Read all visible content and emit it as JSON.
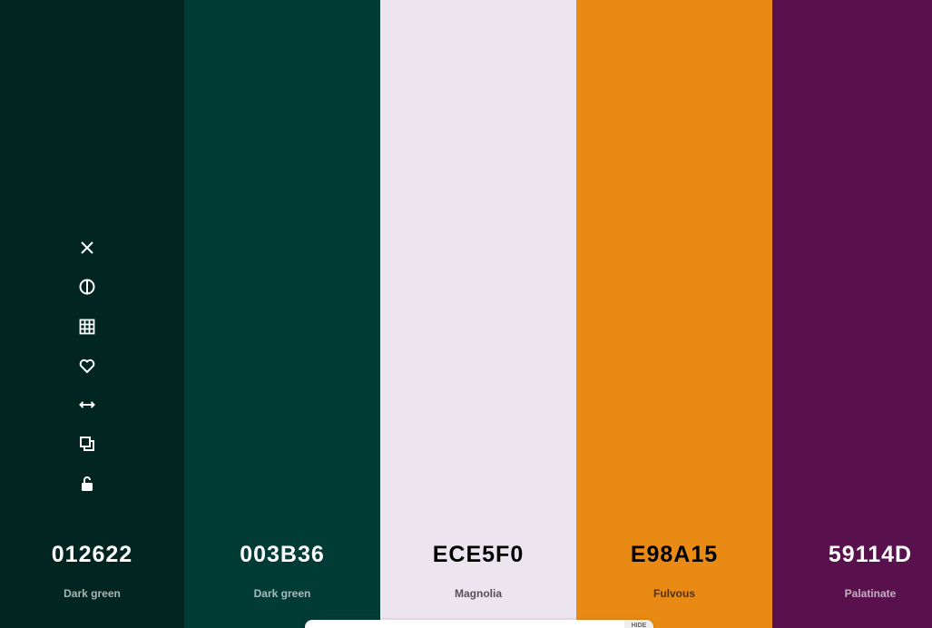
{
  "palette": [
    {
      "hex": "012622",
      "name": "Dark green",
      "color": "#012622",
      "text_color": "#ffffff"
    },
    {
      "hex": "003B36",
      "name": "Dark green",
      "color": "#003b36",
      "text_color": "#ffffff"
    },
    {
      "hex": "ECE5F0",
      "name": "Magnolia",
      "color": "#ece5f0",
      "text_color": "#000000"
    },
    {
      "hex": "E98A15",
      "name": "Fulvous",
      "color": "#e98a15",
      "text_color": "#000000"
    },
    {
      "hex": "59114D",
      "name": "Palatinate",
      "color": "#59114d",
      "text_color": "#ffffff"
    }
  ],
  "footer": {
    "button": "HIDE"
  }
}
